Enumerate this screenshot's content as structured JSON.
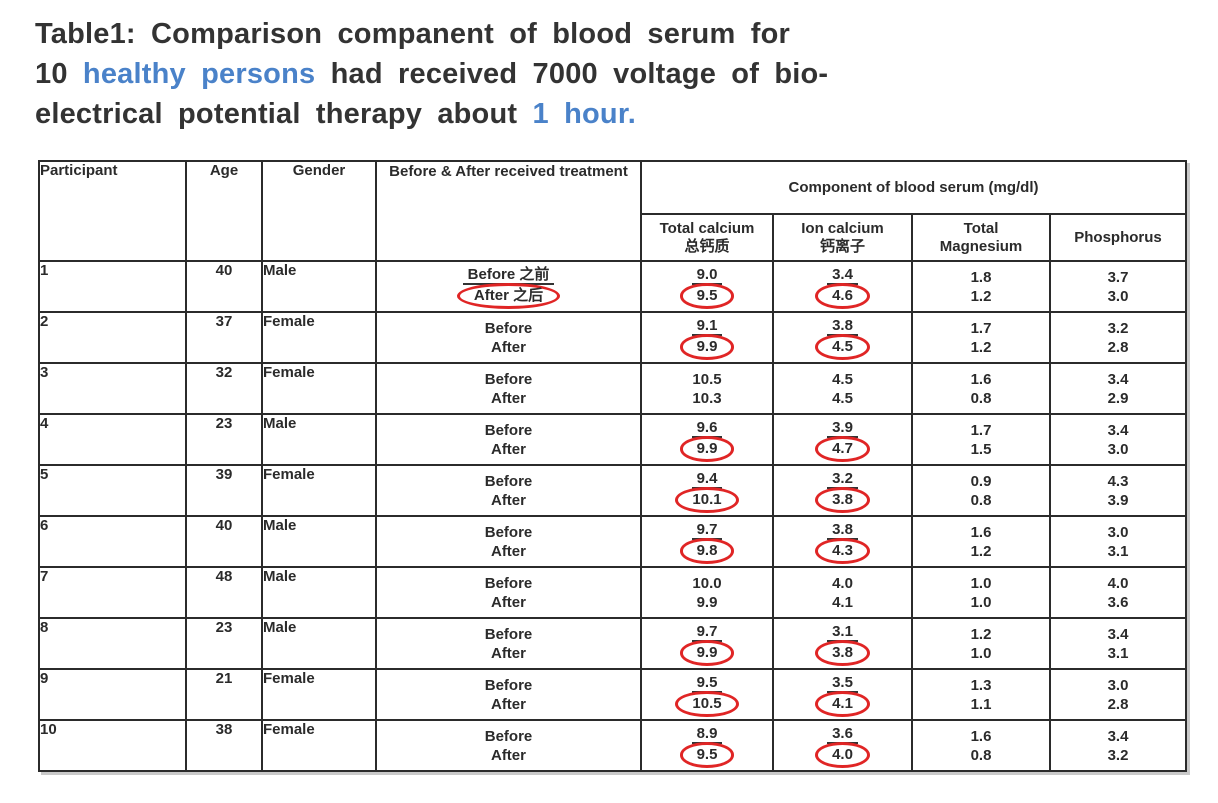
{
  "title": {
    "line1": "Table1: Comparison companent of blood serum for",
    "line2_pre": "10 ",
    "line2_highlight": "healthy persons",
    "line2_post": " had received 7000 voltage of bio-",
    "line3_pre": "electrical potential therapy about ",
    "line3_highlight": "1 hour.",
    "text_color": "#333333",
    "highlight_color": "#4a82c9"
  },
  "table": {
    "headers": {
      "participant": "Participant",
      "age": "Age",
      "gender": "Gender",
      "treatment": "Before & After received treatment",
      "serum_group": "Component of blood serum (mg/dl)",
      "total_calcium_en": "Total calcium",
      "total_calcium_cn": "总钙质",
      "ion_calcium_en": "Ion calcium",
      "ion_calcium_cn": "钙离子",
      "magnesium_line1": "Total",
      "magnesium_line2": "Magnesium",
      "phosphorus": "Phosphorus"
    },
    "annotation_colors": {
      "circle": "#e02525",
      "underline": "#333333",
      "border": "#2b2b2b"
    },
    "rows": [
      {
        "id": "1",
        "age": "40",
        "gender": "Male",
        "treatment": {
          "before": "Before 之前",
          "after": "After 之后",
          "annotated": true
        },
        "total_calcium": {
          "before": "9.0",
          "after": "9.5",
          "annotated": true
        },
        "ion_calcium": {
          "before": "3.4",
          "after": "4.6",
          "annotated": true
        },
        "magnesium": {
          "before": "1.8",
          "after": "1.2",
          "annotated": false
        },
        "phosphorus": {
          "before": "3.7",
          "after": "3.0",
          "annotated": false
        }
      },
      {
        "id": "2",
        "age": "37",
        "gender": "Female",
        "treatment": {
          "before": "Before",
          "after": "After",
          "annotated": false
        },
        "total_calcium": {
          "before": "9.1",
          "after": "9.9",
          "annotated": true
        },
        "ion_calcium": {
          "before": "3.8",
          "after": "4.5",
          "annotated": true
        },
        "magnesium": {
          "before": "1.7",
          "after": "1.2",
          "annotated": false
        },
        "phosphorus": {
          "before": "3.2",
          "after": "2.8",
          "annotated": false
        }
      },
      {
        "id": "3",
        "age": "32",
        "gender": "Female",
        "treatment": {
          "before": "Before",
          "after": "After",
          "annotated": false
        },
        "total_calcium": {
          "before": "10.5",
          "after": "10.3",
          "annotated": false
        },
        "ion_calcium": {
          "before": "4.5",
          "after": "4.5",
          "annotated": false
        },
        "magnesium": {
          "before": "1.6",
          "after": "0.8",
          "annotated": false
        },
        "phosphorus": {
          "before": "3.4",
          "after": "2.9",
          "annotated": false
        }
      },
      {
        "id": "4",
        "age": "23",
        "gender": "Male",
        "treatment": {
          "before": "Before",
          "after": "After",
          "annotated": false
        },
        "total_calcium": {
          "before": "9.6",
          "after": "9.9",
          "annotated": true
        },
        "ion_calcium": {
          "before": "3.9",
          "after": "4.7",
          "annotated": true
        },
        "magnesium": {
          "before": "1.7",
          "after": "1.5",
          "annotated": false
        },
        "phosphorus": {
          "before": "3.4",
          "after": "3.0",
          "annotated": false
        }
      },
      {
        "id": "5",
        "age": "39",
        "gender": "Female",
        "treatment": {
          "before": "Before",
          "after": "After",
          "annotated": false
        },
        "total_calcium": {
          "before": "9.4",
          "after": "10.1",
          "annotated": true
        },
        "ion_calcium": {
          "before": "3.2",
          "after": "3.8",
          "annotated": true
        },
        "magnesium": {
          "before": "0.9",
          "after": "0.8",
          "annotated": false
        },
        "phosphorus": {
          "before": "4.3",
          "after": "3.9",
          "annotated": false
        }
      },
      {
        "id": "6",
        "age": "40",
        "gender": "Male",
        "treatment": {
          "before": "Before",
          "after": "After",
          "annotated": false
        },
        "total_calcium": {
          "before": "9.7",
          "after": "9.8",
          "annotated": true
        },
        "ion_calcium": {
          "before": "3.8",
          "after": "4.3",
          "annotated": true
        },
        "magnesium": {
          "before": "1.6",
          "after": "1.2",
          "annotated": false
        },
        "phosphorus": {
          "before": "3.0",
          "after": "3.1",
          "annotated": false
        }
      },
      {
        "id": "7",
        "age": "48",
        "gender": "Male",
        "treatment": {
          "before": "Before",
          "after": "After",
          "annotated": false
        },
        "total_calcium": {
          "before": "10.0",
          "after": "9.9",
          "annotated": false
        },
        "ion_calcium": {
          "before": "4.0",
          "after": "4.1",
          "annotated": false
        },
        "magnesium": {
          "before": "1.0",
          "after": "1.0",
          "annotated": false
        },
        "phosphorus": {
          "before": "4.0",
          "after": "3.6",
          "annotated": false
        }
      },
      {
        "id": "8",
        "age": "23",
        "gender": "Male",
        "treatment": {
          "before": "Before",
          "after": "After",
          "annotated": false
        },
        "total_calcium": {
          "before": "9.7",
          "after": "9.9",
          "annotated": true
        },
        "ion_calcium": {
          "before": "3.1",
          "after": "3.8",
          "annotated": true
        },
        "magnesium": {
          "before": "1.2",
          "after": "1.0",
          "annotated": false
        },
        "phosphorus": {
          "before": "3.4",
          "after": "3.1",
          "annotated": false
        }
      },
      {
        "id": "9",
        "age": "21",
        "gender": "Female",
        "treatment": {
          "before": "Before",
          "after": "After",
          "annotated": false
        },
        "total_calcium": {
          "before": "9.5",
          "after": "10.5",
          "annotated": true
        },
        "ion_calcium": {
          "before": "3.5",
          "after": "4.1",
          "annotated": true
        },
        "magnesium": {
          "before": "1.3",
          "after": "1.1",
          "annotated": false
        },
        "phosphorus": {
          "before": "3.0",
          "after": "2.8",
          "annotated": false
        }
      },
      {
        "id": "10",
        "age": "38",
        "gender": "Female",
        "treatment": {
          "before": "Before",
          "after": "After",
          "annotated": false
        },
        "total_calcium": {
          "before": "8.9",
          "after": "9.5",
          "annotated": true
        },
        "ion_calcium": {
          "before": "3.6",
          "after": "4.0",
          "annotated": true
        },
        "magnesium": {
          "before": "1.6",
          "after": "0.8",
          "annotated": false
        },
        "phosphorus": {
          "before": "3.4",
          "after": "3.2",
          "annotated": false
        }
      }
    ]
  }
}
